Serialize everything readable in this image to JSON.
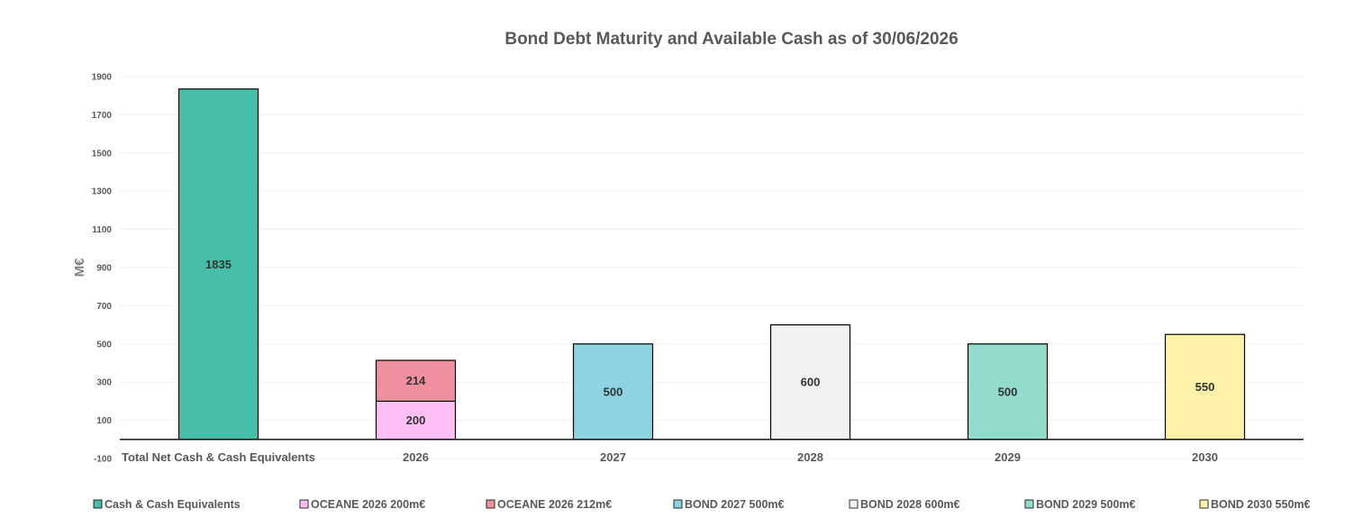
{
  "chart_data": {
    "type": "bar",
    "stacked": true,
    "title": "Bond Debt Maturity and Available Cash as of 30/06/2026",
    "ylabel": "M€",
    "xlabel": "",
    "ylim": [
      -100,
      1900
    ],
    "yticks": [
      -100,
      100,
      300,
      500,
      700,
      900,
      1100,
      1300,
      1500,
      1700,
      1900
    ],
    "yticks_text": [
      "-100",
      "100",
      "300",
      "500",
      "700",
      "900",
      "1100",
      "1300",
      "1500",
      "1700",
      "1900"
    ],
    "categories": [
      "Total Net Cash & Cash Equivalents",
      "2026",
      "2027",
      "2028",
      "2029",
      "2030"
    ],
    "grid": true,
    "legend_position": "bottom",
    "series": [
      {
        "name": "Cash & Cash Equivalents",
        "color": "#47bfa8",
        "values": [
          1835,
          0,
          0,
          0,
          0,
          0
        ],
        "labels": [
          "1835",
          "",
          "",
          "",
          "",
          ""
        ]
      },
      {
        "name": "OCEANE 2026 200m€",
        "color": "#fdbff3",
        "values": [
          0,
          200,
          0,
          0,
          0,
          0
        ],
        "labels": [
          "",
          "200",
          "",
          "",
          "",
          ""
        ]
      },
      {
        "name": "OCEANE 2026 212m€",
        "color": "#f0909e",
        "values": [
          0,
          214,
          0,
          0,
          0,
          0
        ],
        "labels": [
          "",
          "214",
          "",
          "",
          "",
          ""
        ]
      },
      {
        "name": "BOND 2027 500m€",
        "color": "#8dd3e2",
        "values": [
          0,
          0,
          500,
          0,
          0,
          0
        ],
        "labels": [
          "",
          "",
          "500",
          "",
          "",
          ""
        ]
      },
      {
        "name": "BOND 2028 600m€",
        "color": "#f2f2f2",
        "values": [
          0,
          0,
          0,
          600,
          0,
          0
        ],
        "labels": [
          "",
          "",
          "",
          "600",
          "",
          ""
        ]
      },
      {
        "name": "BOND 2029 500m€",
        "color": "#93dbcc",
        "values": [
          0,
          0,
          0,
          0,
          500,
          0
        ],
        "labels": [
          "",
          "",
          "",
          "",
          "500",
          ""
        ]
      },
      {
        "name": "BOND 2030 550m€",
        "color": "#fff2a8",
        "values": [
          0,
          0,
          0,
          0,
          0,
          550
        ],
        "labels": [
          "",
          "",
          "",
          "",
          "",
          "550"
        ]
      }
    ]
  }
}
